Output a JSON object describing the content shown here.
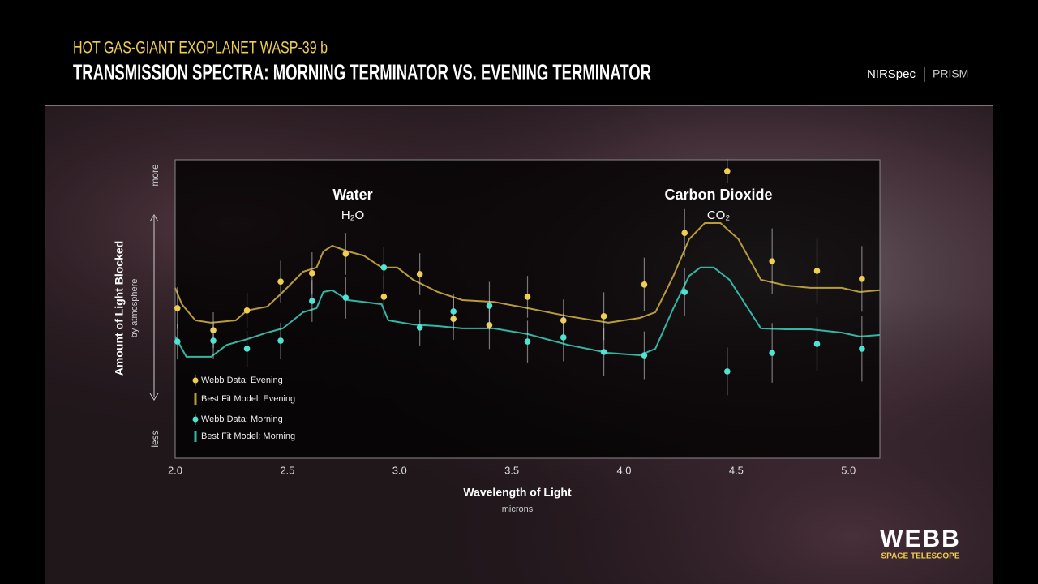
{
  "header": {
    "subtitle": "HOT GAS-GIANT EXOPLANET WASP-39 b",
    "title": "TRANSMISSION SPECTRA: MORNING TERMINATOR VS. EVENING TERMINATOR",
    "instrument": "NIRSpec",
    "mode": "PRISM"
  },
  "logo": {
    "name": "WEBB",
    "tagline": "SPACE TELESCOPE"
  },
  "chart_data": {
    "type": "line",
    "xlabel": "Wavelength of Light",
    "xlabel_unit": "microns",
    "ylabel": "Amount of Light Blocked",
    "ylabel_sub": "by atmosphere",
    "ylabel_top": "more",
    "ylabel_bottom": "less",
    "annotations": [
      {
        "text": "Water",
        "formula": "H₂O"
      },
      {
        "text": "Carbon Dioxide",
        "formula": "CO₂"
      }
    ],
    "xlim": [
      2.0,
      5.14
    ],
    "ylim": [
      0,
      100
    ],
    "xticks": [
      {
        "value": 2.0,
        "label": "2.0"
      },
      2.5,
      {
        "value": 3.0,
        "label": "3.0"
      },
      3.5,
      {
        "value": 4.0,
        "label": "4.0"
      },
      4.5,
      {
        "value": 5.0,
        "label": "5.0"
      }
    ],
    "series": [
      {
        "name": "Webb Data: Evening",
        "kind": "scatter",
        "color": "#f0cf4f",
        "x": [
          2.01,
          2.17,
          2.32,
          2.47,
          2.61,
          2.76,
          2.93,
          3.09,
          3.24,
          3.4,
          3.57,
          3.73,
          3.91,
          4.09,
          4.27,
          4.46,
          4.66,
          4.86,
          5.06
        ],
        "values": [
          50.3,
          42.9,
          49.5,
          59.2,
          62.0,
          68.5,
          54.1,
          61.7,
          46.7,
          44.6,
          54.1,
          46.2,
          47.6,
          58.2,
          75.5,
          96.2,
          66.0,
          62.8,
          60.1
        ],
        "errors": [
          7,
          6,
          6,
          7,
          7,
          7,
          7,
          7,
          7,
          8,
          7,
          7,
          8,
          9,
          8,
          4,
          11,
          11,
          11
        ]
      },
      {
        "name": "Best Fit Model: Evening",
        "kind": "line",
        "color": "#b79b3c",
        "x": [
          2.0,
          2.03,
          2.09,
          2.16,
          2.27,
          2.32,
          2.41,
          2.48,
          2.57,
          2.63,
          2.66,
          2.7,
          2.77,
          2.84,
          2.92,
          2.99,
          3.06,
          3.17,
          3.28,
          3.42,
          3.57,
          3.75,
          3.93,
          4.07,
          4.14,
          4.22,
          4.29,
          4.36,
          4.43,
          4.51,
          4.61,
          4.72,
          4.83,
          4.97,
          5.05,
          5.14
        ],
        "values": [
          57.1,
          51.6,
          46.2,
          45.4,
          46.2,
          49.5,
          50.8,
          55.7,
          62.5,
          63.9,
          69.3,
          71.2,
          69.3,
          67.9,
          63.9,
          63.9,
          59.8,
          55.7,
          53.0,
          52.4,
          50.3,
          47.6,
          45.4,
          47.0,
          48.9,
          61.1,
          73.4,
          78.8,
          78.8,
          73.4,
          59.8,
          57.9,
          57.1,
          57.1,
          55.7,
          56.3
        ]
      },
      {
        "name": "Webb Data: Morning",
        "kind": "scatter",
        "color": "#4fe3d2",
        "x": [
          2.01,
          2.17,
          2.32,
          2.47,
          2.61,
          2.76,
          2.93,
          3.09,
          3.24,
          3.4,
          3.57,
          3.73,
          3.91,
          4.09,
          4.27,
          4.46,
          4.66,
          4.86,
          5.06
        ],
        "values": [
          39.1,
          39.4,
          36.7,
          39.4,
          52.7,
          53.8,
          63.9,
          43.8,
          49.2,
          51.1,
          39.1,
          40.5,
          35.6,
          34.5,
          55.7,
          29.1,
          35.3,
          38.3,
          36.7
        ],
        "errors": [
          6,
          6,
          6,
          6,
          7,
          7,
          7,
          6,
          6,
          8,
          7,
          8,
          8,
          8,
          8,
          8,
          10,
          9,
          11
        ]
      },
      {
        "name": "Best Fit Model: Morning",
        "kind": "line",
        "color": "#35b5a3",
        "x": [
          2.0,
          2.05,
          2.16,
          2.23,
          2.32,
          2.41,
          2.48,
          2.57,
          2.63,
          2.66,
          2.7,
          2.77,
          2.84,
          2.92,
          2.95,
          3.06,
          3.17,
          3.28,
          3.42,
          3.57,
          3.75,
          3.93,
          4.07,
          4.14,
          4.22,
          4.29,
          4.34,
          4.4,
          4.47,
          4.61,
          4.72,
          4.83,
          4.97,
          5.05,
          5.14
        ],
        "values": [
          40.8,
          34.0,
          34.0,
          38.0,
          39.9,
          42.1,
          43.5,
          48.9,
          50.3,
          55.7,
          56.3,
          53.0,
          52.4,
          51.6,
          46.2,
          44.8,
          44.3,
          43.5,
          43.5,
          41.6,
          38.0,
          35.3,
          34.5,
          36.7,
          50.3,
          61.1,
          63.9,
          63.9,
          59.8,
          43.5,
          43.2,
          43.2,
          42.1,
          40.8,
          41.3
        ]
      }
    ]
  }
}
